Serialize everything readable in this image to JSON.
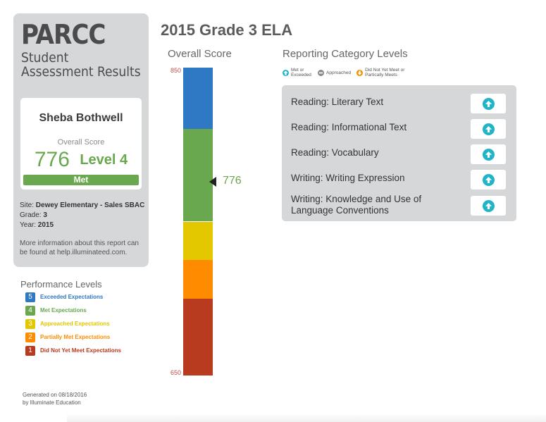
{
  "sidebar": {
    "brand": "PARCC",
    "brand_sub": "Student Assessment Results",
    "student_name": "Sheba Bothwell",
    "overall_label": "Overall Score",
    "score": "776",
    "level": "Level 4",
    "status": "Met",
    "site_label": "Site:",
    "site": "Dewey Elementary - Sales SBAC",
    "grade_label": "Grade:",
    "grade": "3",
    "year_label": "Year:",
    "year": "2015",
    "more_info": "More information about this report can be found at help.illuminateed.com."
  },
  "performance": {
    "title": "Performance Levels",
    "levels": [
      {
        "num": "5",
        "label": "Exceeded Expectations",
        "color": "#2f78c4"
      },
      {
        "num": "4",
        "label": "Met Expectations",
        "color": "#6aa84f"
      },
      {
        "num": "3",
        "label": "Approached Expectations",
        "color": "#e3c800"
      },
      {
        "num": "2",
        "label": "Partially Met Expectations",
        "color": "#ff8c00"
      },
      {
        "num": "1",
        "label": "Did Not Yet Meet Expectations",
        "color": "#b83a1f"
      }
    ]
  },
  "footer": {
    "generated_line1": "Generated on 08/18/2016",
    "generated_line2": "by Illuminate Education"
  },
  "main": {
    "title": "2015 Grade 3 ELA",
    "overall_title": "Overall Score",
    "scale_max": "850",
    "scale_min": "650",
    "marker_value": "776"
  },
  "chart_data": {
    "type": "bar",
    "title": "Overall Score",
    "ylim": [
      650,
      850
    ],
    "score": 776,
    "bands": [
      {
        "level": 5,
        "from": 810,
        "to": 850,
        "color": "#2f78c4"
      },
      {
        "level": 4,
        "from": 750,
        "to": 810,
        "color": "#6aa84f"
      },
      {
        "level": 3,
        "from": 725,
        "to": 750,
        "color": "#e3c800"
      },
      {
        "level": 2,
        "from": 700,
        "to": 725,
        "color": "#ff8c00"
      },
      {
        "level": 1,
        "from": 650,
        "to": 700,
        "color": "#b83a1f"
      }
    ]
  },
  "reporting": {
    "title": "Reporting Category Levels",
    "legend": [
      {
        "label": "Met or Exceeded",
        "icon": "arrow-up-icon",
        "color": "#1fb4c6"
      },
      {
        "label": "Approached",
        "icon": "minus-icon",
        "color": "#888888"
      },
      {
        "label": "Did Not Yet Meet or Partically Meets",
        "icon": "arrow-down-icon",
        "color": "#f08c00"
      }
    ],
    "categories": [
      {
        "label": "Reading: Literary Text",
        "status": "Met or Exceeded"
      },
      {
        "label": "Reading: Informational Text",
        "status": "Met or Exceeded"
      },
      {
        "label": "Reading: Vocabulary",
        "status": "Met or Exceeded"
      },
      {
        "label": "Writing: Writing Expression",
        "status": "Met or Exceeded"
      },
      {
        "label": "Writing: Knowledge and Use of Language Conventions",
        "status": "Met or Exceeded"
      }
    ]
  }
}
